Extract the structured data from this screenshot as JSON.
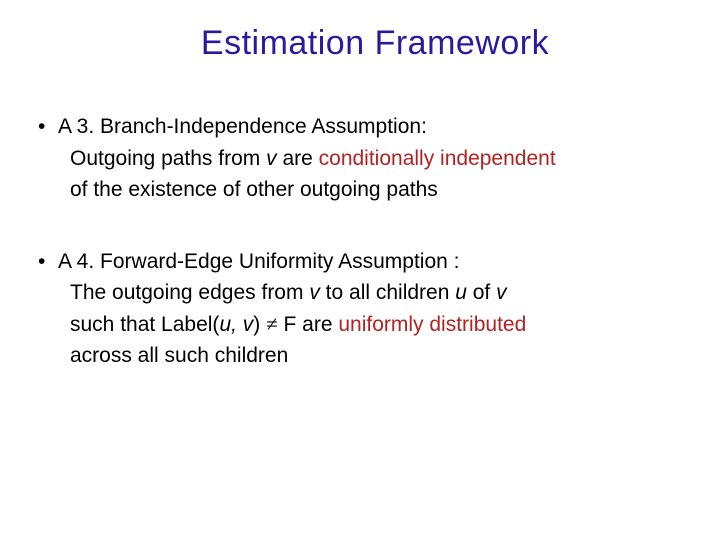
{
  "colors": {
    "title": "#2a1a9e",
    "body": "#000000",
    "highlight1": "#b22222",
    "highlight2": "#b22222"
  },
  "title": "Estimation Framework",
  "b1": {
    "lead": "A 3. Branch-Independence Assumption:",
    "l1a": "Outgoing paths from ",
    "l1v": "v",
    "l1b": " are ",
    "l1h": "conditionally independent",
    "l2": "of the existence of other outgoing paths"
  },
  "b2": {
    "lead": "A 4. Forward-Edge Uniformity Assumption :",
    "l1a": "The outgoing edges from ",
    "l1v1": "v",
    "l1b": " to all children ",
    "l1u": "u",
    "l1c": " of ",
    "l1v2": "v",
    "l2a": "such that Label(",
    "l2uv": "u, v",
    "l2b": ") ",
    "l2neq": "≠",
    "l2c": " F are ",
    "l2h": "uniformly distributed",
    "l3": "across all such children"
  },
  "bullet": "•"
}
